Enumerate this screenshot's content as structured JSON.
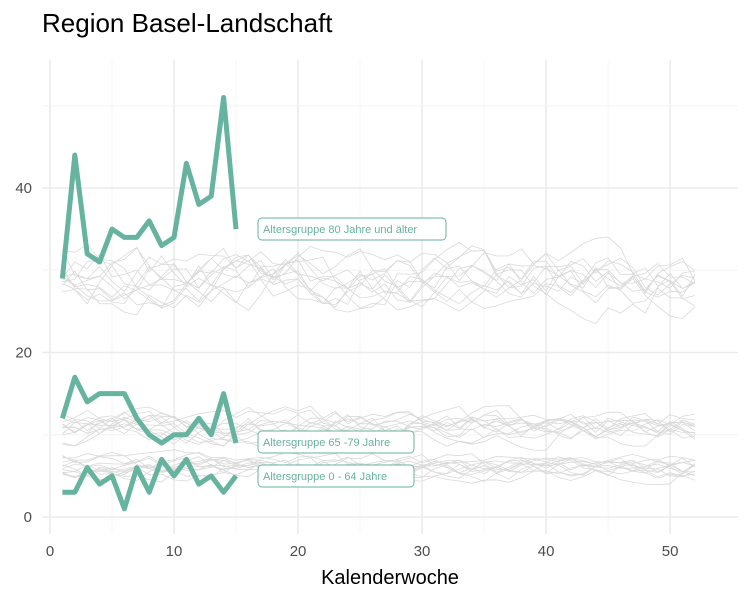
{
  "chart_data": {
    "type": "line",
    "title": "Region Basel-Landschaft",
    "xlabel": "Kalenderwoche",
    "ylabel": "",
    "xlim": [
      0,
      52
    ],
    "ylim": [
      0,
      54
    ],
    "x_ticks": [
      0,
      10,
      20,
      30,
      40,
      50
    ],
    "y_ticks": [
      0,
      20,
      40
    ],
    "grid": true,
    "highlight_color": "#66b3a0",
    "background_color": "#d9d9d9",
    "series": [
      {
        "label": "Altersgruppe 80 Jahre und älter",
        "x": [
          1,
          2,
          3,
          4,
          5,
          6,
          7,
          8,
          9,
          10,
          11,
          12,
          13,
          14,
          15
        ],
        "values": [
          29,
          44,
          32,
          31,
          35,
          34,
          34,
          36,
          33,
          34,
          43,
          38,
          39,
          51,
          35
        ]
      },
      {
        "label": "Altersgruppe 65 -79 Jahre",
        "x": [
          1,
          2,
          3,
          4,
          5,
          6,
          7,
          8,
          9,
          10,
          11,
          12,
          13,
          14,
          15
        ],
        "values": [
          12,
          17,
          14,
          15,
          15,
          15,
          12,
          10,
          9,
          10,
          10,
          12,
          10,
          15,
          9
        ]
      },
      {
        "label": "Altersgruppe 0 - 64 Jahre",
        "x": [
          1,
          2,
          3,
          4,
          5,
          6,
          7,
          8,
          9,
          10,
          11,
          12,
          13,
          14,
          15
        ],
        "values": [
          3,
          3,
          6,
          4,
          5,
          1,
          6,
          3,
          7,
          5,
          7,
          4,
          5,
          3,
          5
        ]
      }
    ],
    "background_series_bands": [
      {
        "group": "80+",
        "center": 29,
        "spread": 7,
        "count": 12
      },
      {
        "group": "65-79",
        "center": 11,
        "spread": 4,
        "count": 12
      },
      {
        "group": "0-64",
        "center": 6,
        "spread": 3,
        "count": 12
      }
    ]
  }
}
